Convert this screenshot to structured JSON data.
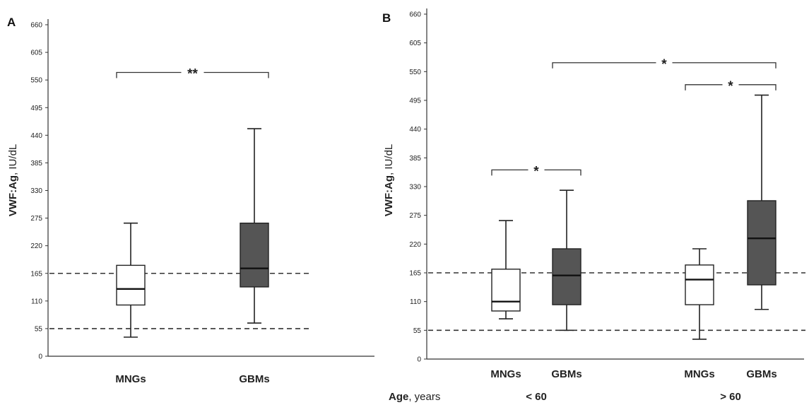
{
  "chart_data": [
    {
      "panel_label": "A",
      "type": "boxplot",
      "ylabel_bold": "VWF:Ag",
      "ylabel_rest": ", IU/dL",
      "ylim": [
        0,
        660
      ],
      "yticks": [
        0,
        55,
        110,
        165,
        220,
        275,
        330,
        385,
        440,
        495,
        550,
        605,
        660
      ],
      "categories": [
        "MNGs",
        "GBMs"
      ],
      "boxes": [
        {
          "category": "MNGs",
          "fill": "white",
          "min": 38,
          "q1": 102,
          "median": 134,
          "q3": 181,
          "max": 265
        },
        {
          "category": "GBMs",
          "fill": "dark",
          "min": 66,
          "q1": 138,
          "median": 175,
          "q3": 265,
          "max": 453
        }
      ],
      "reference_lines": [
        165,
        55
      ],
      "significance": [
        {
          "between": [
            "MNGs",
            "GBMs"
          ],
          "label": "**",
          "y": 565
        }
      ]
    },
    {
      "panel_label": "B",
      "type": "boxplot",
      "ylabel_bold": "VWF:Ag",
      "ylabel_rest": ", IU/dL",
      "ylim": [
        0,
        660
      ],
      "yticks": [
        0,
        55,
        110,
        165,
        220,
        275,
        330,
        385,
        440,
        495,
        550,
        605,
        660
      ],
      "age_axis_label_bold": "Age",
      "age_axis_label_rest": ", years",
      "groups": [
        {
          "label": "< 60",
          "categories": [
            "MNGs",
            "GBMs"
          ]
        },
        {
          "label": "> 60",
          "categories": [
            "MNGs",
            "GBMs"
          ]
        }
      ],
      "boxes": [
        {
          "group": "< 60",
          "category": "MNGs",
          "fill": "white",
          "min": 77,
          "q1": 92,
          "median": 110,
          "q3": 172,
          "max": 265
        },
        {
          "group": "< 60",
          "category": "GBMs",
          "fill": "dark",
          "min": 55,
          "q1": 104,
          "median": 160,
          "q3": 211,
          "max": 323
        },
        {
          "group": "> 60",
          "category": "MNGs",
          "fill": "white",
          "min": 38,
          "q1": 104,
          "median": 152,
          "q3": 180,
          "max": 211
        },
        {
          "group": "> 60",
          "category": "GBMs",
          "fill": "dark",
          "min": 95,
          "q1": 142,
          "median": 231,
          "q3": 303,
          "max": 505
        }
      ],
      "reference_lines": [
        165,
        55
      ],
      "significance": [
        {
          "between": [
            "< 60 MNGs",
            "< 60 GBMs"
          ],
          "label": "*",
          "y": 362
        },
        {
          "between": [
            "> 60 MNGs",
            "> 60 GBMs"
          ],
          "label": "*",
          "y": 525
        },
        {
          "between": [
            "< 60 GBMs",
            "> 60 GBMs"
          ],
          "label": "*",
          "y": 567
        }
      ]
    }
  ],
  "colors": {
    "dark_box": "#555555",
    "light_box": "#ffffff",
    "line": "#222222"
  }
}
